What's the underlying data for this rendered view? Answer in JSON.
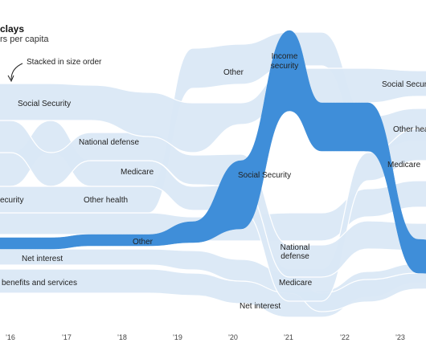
{
  "header": {
    "title": "clays",
    "subtitle": "rs per capita"
  },
  "annotation": "Stacked in size order",
  "chart_data": {
    "type": "area",
    "title": "clays",
    "subtitle": "rs per capita",
    "x": [
      "'16",
      "'17",
      "'18",
      "'19",
      "'20",
      "'21",
      "'22",
      "'23"
    ],
    "ordering": "stacked in size order per year",
    "grid": false,
    "legend": "none",
    "highlighted_series": "Other",
    "series_labels": [
      {
        "id": "ss-2016",
        "text": "Social Security"
      },
      {
        "id": "nd-2017",
        "text": "National defense"
      },
      {
        "id": "med-2018",
        "text": "Medicare"
      },
      {
        "id": "inc-2016",
        "text": "ecurity"
      },
      {
        "id": "oh-2017",
        "text": "Other health"
      },
      {
        "id": "oth-2018",
        "text": "Other"
      },
      {
        "id": "ni-2016",
        "text": "Net interest"
      },
      {
        "id": "vet-2016",
        "text": "benefits and services"
      },
      {
        "id": "oth-2020",
        "text": "Other"
      },
      {
        "id": "inc-2021",
        "text": "Income"
      },
      {
        "id": "inc-2021b",
        "text": "security"
      },
      {
        "id": "ss-2020",
        "text": "Social Security"
      },
      {
        "id": "nd-2021",
        "text": "National"
      },
      {
        "id": "nd-2021b",
        "text": "defense"
      },
      {
        "id": "med-2021",
        "text": "Medicare"
      },
      {
        "id": "ni-2020",
        "text": "Net interest"
      },
      {
        "id": "ss-2023",
        "text": "Social Securi"
      },
      {
        "id": "oh-2023",
        "text": "Other heal"
      },
      {
        "id": "med-2023",
        "text": "Medicare"
      }
    ]
  },
  "colors": {
    "band": "#d9e7f5",
    "band_edge": "#ffffff",
    "highlight": "#3f8ed9",
    "text": "#222222",
    "axis_text": "#444444"
  }
}
